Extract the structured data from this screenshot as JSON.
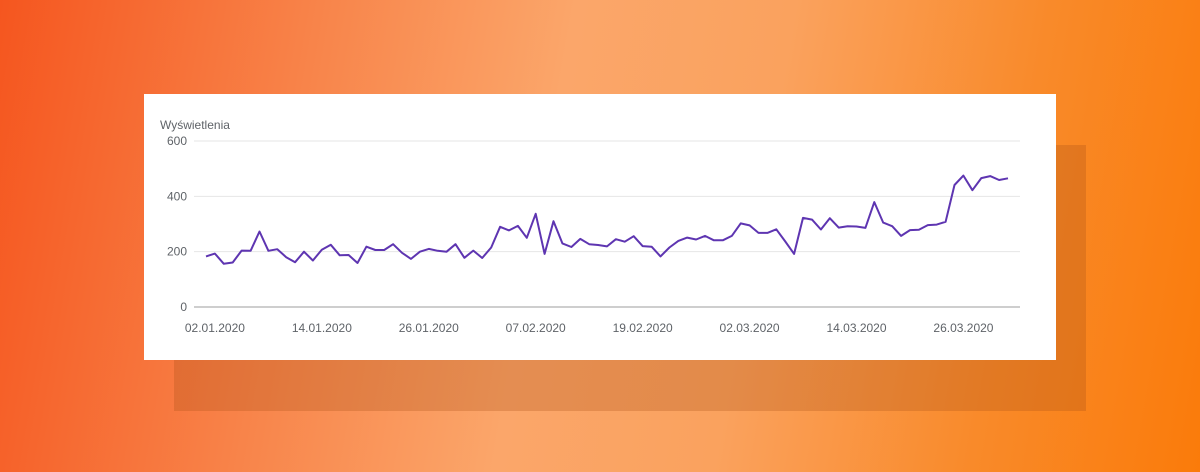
{
  "chart_data": {
    "type": "line",
    "title": "",
    "ylabel": "Wyświetlenia",
    "xlabel": "",
    "ylim": [
      0,
      600
    ],
    "yticks": [
      0,
      200,
      400,
      600
    ],
    "xtick_labels": [
      "02.01.2020",
      "14.01.2020",
      "26.01.2020",
      "07.02.2020",
      "19.02.2020",
      "02.03.2020",
      "14.03.2020",
      "26.03.2020"
    ],
    "x_start": "2020-01-01",
    "x_end": "2020-03-31",
    "series_color": "#5e35b1",
    "grid": true,
    "series": [
      {
        "values": [
          183,
          193,
          156,
          161,
          204,
          203,
          273,
          203,
          209,
          180,
          162,
          200,
          168,
          207,
          225,
          187,
          188,
          159,
          218,
          206,
          206,
          227,
          196,
          174,
          200,
          210,
          203,
          200,
          227,
          178,
          204,
          177,
          215,
          290,
          277,
          293,
          250,
          337,
          192,
          310,
          230,
          217,
          246,
          227,
          224,
          219,
          245,
          236,
          256,
          220,
          218,
          183,
          215,
          239,
          251,
          244,
          257,
          241,
          241,
          257,
          302,
          295,
          268,
          268,
          281,
          237,
          192,
          322,
          316,
          280,
          321,
          287,
          292,
          291,
          286,
          379,
          305,
          292,
          257,
          278,
          279,
          296,
          298,
          308,
          441,
          475,
          422,
          466,
          473,
          459,
          465
        ]
      }
    ]
  }
}
